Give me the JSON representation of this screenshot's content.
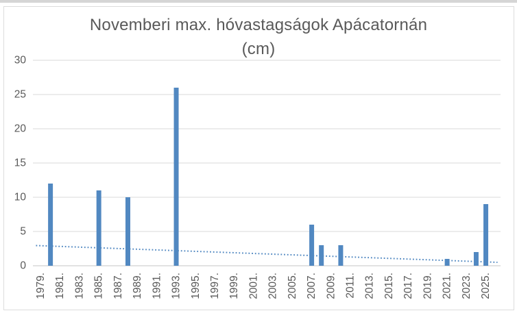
{
  "chart_data": {
    "type": "bar",
    "title": "Novemberi max. hóvastagságok Apácatornán (cm)",
    "title_lines": [
      "Novemberi max. hóvastagságok Apácatornán",
      "(cm)"
    ],
    "x_axis": {
      "first_year": 1979,
      "last_year": 2026,
      "tick_labels": [
        "1979.",
        "1981.",
        "1983.",
        "1985.",
        "1987.",
        "1989.",
        "1991.",
        "1993.",
        "1995.",
        "1997.",
        "1999.",
        "2001.",
        "2003.",
        "2005.",
        "2007.",
        "2009.",
        "2011.",
        "2013.",
        "2015.",
        "2017.",
        "2019.",
        "2021.",
        "2023.",
        "2025."
      ]
    },
    "y_axis": {
      "min": 0,
      "max": 30,
      "step": 5,
      "tick_labels": [
        "0",
        "5",
        "10",
        "15",
        "20",
        "25",
        "30"
      ]
    },
    "bars": [
      {
        "year": 1980,
        "value": 12
      },
      {
        "year": 1985,
        "value": 11
      },
      {
        "year": 1988,
        "value": 10
      },
      {
        "year": 1993,
        "value": 26
      },
      {
        "year": 2007,
        "value": 6
      },
      {
        "year": 2008,
        "value": 3
      },
      {
        "year": 2010,
        "value": 3
      },
      {
        "year": 2021,
        "value": 1
      },
      {
        "year": 2024,
        "value": 2
      },
      {
        "year": 2025,
        "value": 9
      }
    ],
    "trendline": {
      "style": "dotted",
      "points": [
        {
          "year": 1978.5,
          "value": 2.95
        },
        {
          "year": 2026.2,
          "value": 0.5
        }
      ]
    },
    "grid": true,
    "legend": false,
    "colors": {
      "bar": "#5188c1",
      "trend": "#5188c1",
      "grid": "#d9d9d9",
      "axis_line": "#c6c6c6",
      "axis_text": "#595959",
      "title_text": "#595959",
      "frame_border": "#dcdcdc"
    }
  }
}
